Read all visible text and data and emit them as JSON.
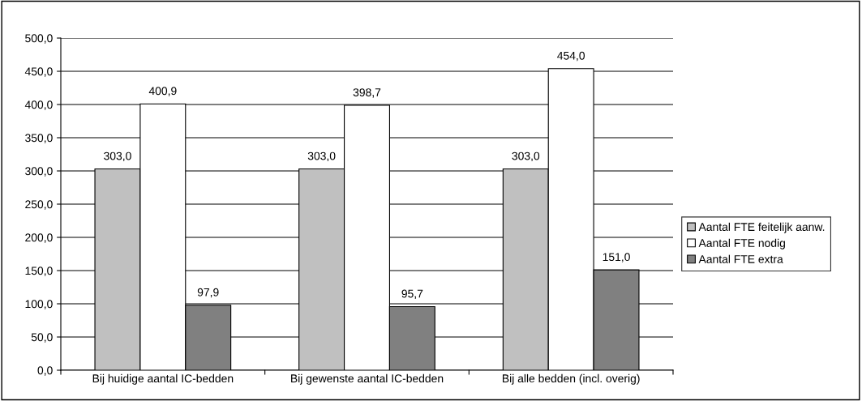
{
  "chart_data": {
    "type": "bar",
    "categories": [
      "Bij huidige aantal IC-bedden",
      "Bij gewenste aantal IC-bedden",
      "Bij alle bedden (incl. overig)"
    ],
    "series": [
      {
        "name": "Aantal FTE feitelijk aanw.",
        "color": "#c0c0c0",
        "values": [
          303.0,
          303.0,
          303.0
        ],
        "value_labels": [
          "303,0",
          "303,0",
          "303,0"
        ]
      },
      {
        "name": "Aantal FTE nodig",
        "color": "#ffffff",
        "values": [
          400.9,
          398.7,
          454.0
        ],
        "value_labels": [
          "400,9",
          "398,7",
          "454,0"
        ]
      },
      {
        "name": "Aantal FTE extra",
        "color": "#808080",
        "values": [
          97.9,
          95.7,
          151.0
        ],
        "value_labels": [
          "97,9",
          "95,7",
          "151,0"
        ]
      }
    ],
    "ylim": [
      0,
      500
    ],
    "yticks": [
      {
        "value": 0,
        "label": "0,0"
      },
      {
        "value": 50,
        "label": "50,0"
      },
      {
        "value": 100,
        "label": "100,0"
      },
      {
        "value": 150,
        "label": "150,0"
      },
      {
        "value": 200,
        "label": "200,0"
      },
      {
        "value": 250,
        "label": "250,0"
      },
      {
        "value": 300,
        "label": "300,0"
      },
      {
        "value": 350,
        "label": "350,0"
      },
      {
        "value": 400,
        "label": "400,0"
      },
      {
        "value": 450,
        "label": "450,0"
      },
      {
        "value": 500,
        "label": "500,0"
      }
    ],
    "grid": "y",
    "legend": "right"
  }
}
